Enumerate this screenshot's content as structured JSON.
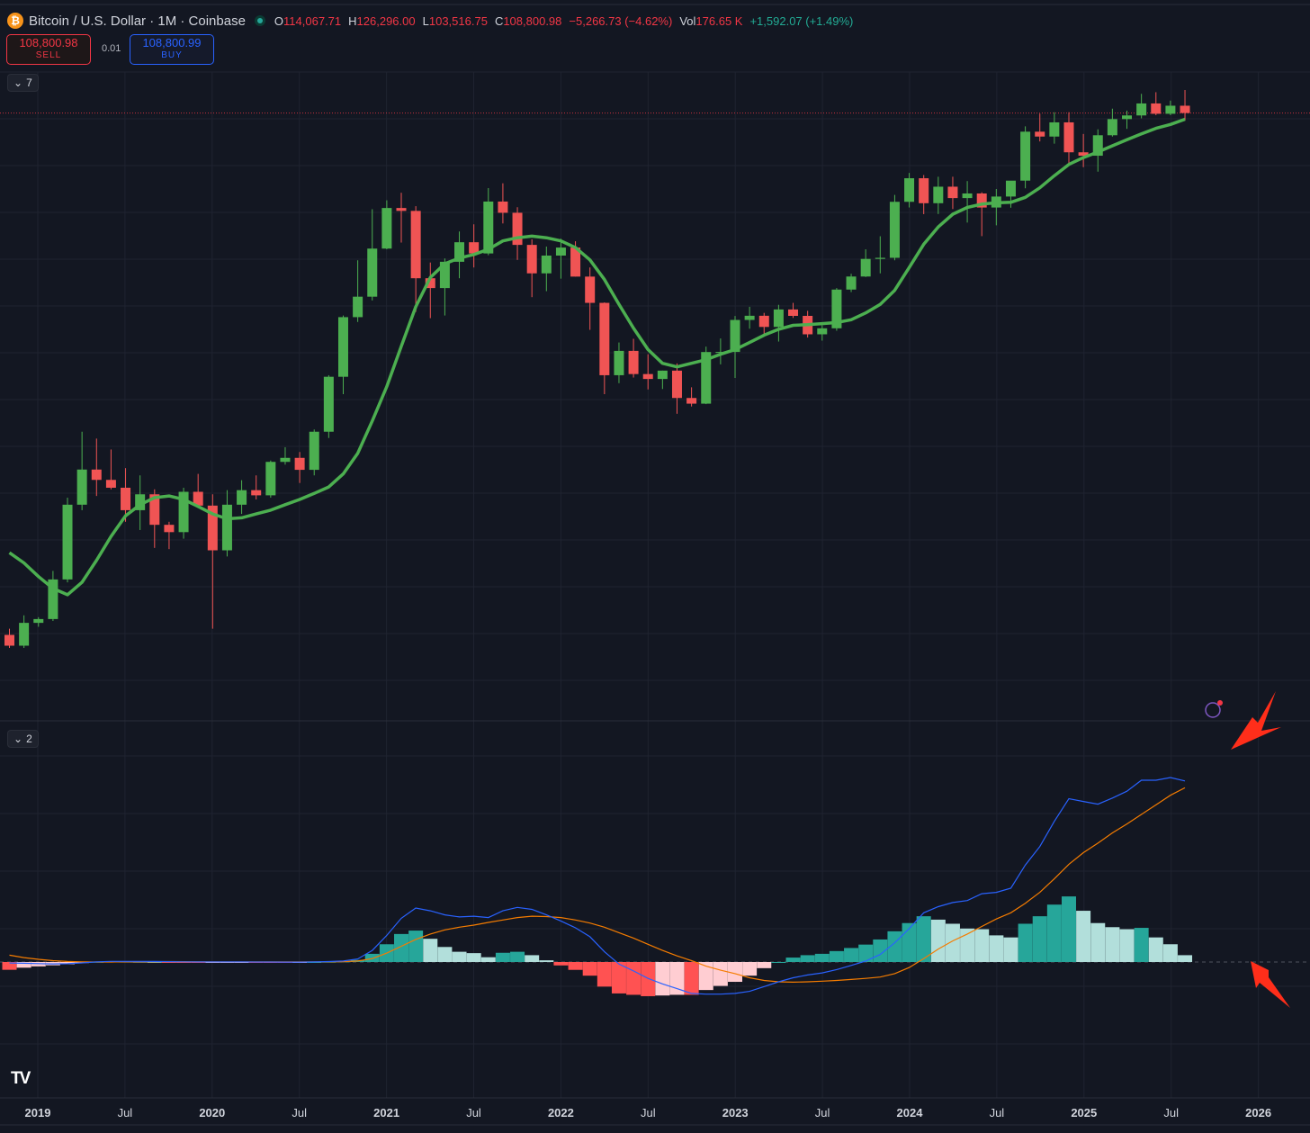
{
  "header": {
    "symbol": "Bitcoin / U.S. Dollar · 1M · Coinbase",
    "o_label": "O",
    "o_value": "114,067.71",
    "h_label": "H",
    "h_value": "126,296.00",
    "l_label": "L",
    "l_value": "103,516.75",
    "c_label": "C",
    "c_value": "108,800.98",
    "change": "−5,266.73 (−4.62%)",
    "vol_label": "Vol",
    "vol_value": "176.65 K",
    "vol_change": "+1,592.07 (+1.49%)"
  },
  "trade": {
    "sell_price": "108,800.98",
    "sell_label": "SELL",
    "spread": "0.01",
    "buy_price": "108,800.99",
    "buy_label": "BUY"
  },
  "panes": {
    "main_indicators_count": "7",
    "lower_indicators_count": "2"
  },
  "colors": {
    "up": "#4caf50",
    "down": "#f05454",
    "ma": "#4caf50",
    "macd": "#2962ff",
    "signal": "#f57c00",
    "hist_up_strong": "#26a69a",
    "hist_up_weak": "#b2dfdb",
    "hist_down_strong": "#ff5252",
    "hist_down_weak": "#ffcdd2",
    "annotation_arrow": "#ff2e1a"
  },
  "chart_data": {
    "type": "candlestick",
    "timeframe": "monthly",
    "start": "2019-01",
    "x_tick_labels": [
      "2019",
      "Jul",
      "2020",
      "Jul",
      "2021",
      "Jul",
      "2022",
      "Jul",
      "2023",
      "Jul",
      "2024",
      "Jul",
      "2025",
      "Jul",
      "2026"
    ],
    "y_scale": "log",
    "ohlc": [
      [
        3700,
        3850,
        3400,
        3450
      ],
      [
        3450,
        4200,
        3400,
        4000
      ],
      [
        4000,
        4150,
        3900,
        4100
      ],
      [
        4100,
        5600,
        4050,
        5300
      ],
      [
        5300,
        9000,
        5200,
        8600
      ],
      [
        8600,
        13800,
        8300,
        10800
      ],
      [
        10800,
        13200,
        9100,
        10100
      ],
      [
        10100,
        12300,
        9500,
        9600
      ],
      [
        9600,
        10900,
        7700,
        8300
      ],
      [
        8300,
        10400,
        7300,
        9200
      ],
      [
        9200,
        9500,
        6500,
        7550
      ],
      [
        7550,
        7700,
        6450,
        7200
      ],
      [
        7200,
        9600,
        6900,
        9350
      ],
      [
        9350,
        10500,
        8450,
        8550
      ],
      [
        8550,
        9200,
        3850,
        6400
      ],
      [
        6400,
        9450,
        6150,
        8600
      ],
      [
        8600,
        10080,
        8100,
        9450
      ],
      [
        9450,
        10400,
        8900,
        9140
      ],
      [
        9140,
        11450,
        9000,
        11350
      ],
      [
        11350,
        12480,
        11150,
        11650
      ],
      [
        11650,
        12100,
        9900,
        10780
      ],
      [
        10780,
        14000,
        10400,
        13800
      ],
      [
        13800,
        19900,
        13250,
        19700
      ],
      [
        19700,
        29300,
        17600,
        28990
      ],
      [
        28990,
        41900,
        28100,
        33100
      ],
      [
        33100,
        58350,
        32300,
        45200
      ],
      [
        45200,
        61800,
        45000,
        58800
      ],
      [
        58800,
        64900,
        47000,
        57700
      ],
      [
        57700,
        59500,
        30000,
        37300
      ],
      [
        37300,
        41300,
        28800,
        35000
      ],
      [
        35000,
        42400,
        29300,
        41500
      ],
      [
        41500,
        50500,
        37300,
        47100
      ],
      [
        47100,
        52900,
        40000,
        43800
      ],
      [
        43800,
        66900,
        43300,
        61300
      ],
      [
        61300,
        69000,
        53200,
        57000
      ],
      [
        57000,
        59100,
        42000,
        46300
      ],
      [
        46300,
        48000,
        33000,
        38500
      ],
      [
        38500,
        45800,
        34300,
        43200
      ],
      [
        43200,
        48200,
        37200,
        45500
      ],
      [
        45500,
        47400,
        37700,
        37700
      ],
      [
        37700,
        40000,
        26700,
        31800
      ],
      [
        31800,
        31900,
        17600,
        19900
      ],
      [
        19900,
        24600,
        18900,
        23300
      ],
      [
        23300,
        25200,
        19600,
        20050
      ],
      [
        20050,
        22800,
        18150,
        19420
      ],
      [
        19420,
        20500,
        18200,
        20500
      ],
      [
        20500,
        21480,
        15500,
        17170
      ],
      [
        17170,
        18400,
        16250,
        16550
      ],
      [
        16550,
        23950,
        16500,
        23125
      ],
      [
        23125,
        25250,
        21350,
        23140
      ],
      [
        23140,
        29200,
        19550,
        28470
      ],
      [
        28470,
        31000,
        26900,
        29250
      ],
      [
        29250,
        29800,
        25800,
        27210
      ],
      [
        27210,
        31400,
        24750,
        30470
      ],
      [
        30470,
        31800,
        28850,
        29230
      ],
      [
        29230,
        30200,
        25400,
        25940
      ],
      [
        25940,
        27500,
        24900,
        26970
      ],
      [
        26970,
        35000,
        26550,
        34660
      ],
      [
        34660,
        38400,
        34100,
        37720
      ],
      [
        37720,
        45000,
        37600,
        42280
      ],
      [
        42280,
        48960,
        38500,
        42580
      ],
      [
        42580,
        64000,
        41900,
        61200
      ],
      [
        61200,
        73800,
        59000,
        71300
      ],
      [
        71300,
        72800,
        56500,
        60650
      ],
      [
        60650,
        72000,
        56550,
        67500
      ],
      [
        67500,
        72000,
        58400,
        62700
      ],
      [
        62700,
        70000,
        53500,
        64600
      ],
      [
        64600,
        65100,
        49000,
        58980
      ],
      [
        58980,
        66500,
        52550,
        63330
      ],
      [
        63330,
        69500,
        58900,
        70200
      ],
      [
        70200,
        99800,
        66800,
        96400
      ],
      [
        96400,
        108350,
        90500,
        93400
      ],
      [
        93400,
        109350,
        89200,
        102400
      ],
      [
        102400,
        109350,
        78200,
        84350
      ],
      [
        84350,
        95000,
        76600,
        82500
      ],
      [
        82500,
        97900,
        74400,
        94200
      ],
      [
        94200,
        111900,
        93400,
        104600
      ],
      [
        104600,
        110500,
        98200,
        107100
      ],
      [
        107100,
        123200,
        105100,
        115750
      ],
      [
        115750,
        124500,
        107300,
        108250
      ],
      [
        108250,
        117900,
        107300,
        114067
      ],
      [
        114067,
        126296,
        103517,
        108800
      ]
    ],
    "ma_line": [
      6300,
      5900,
      5400,
      5000,
      4800,
      5200,
      6000,
      7000,
      8000,
      8600,
      9000,
      9100,
      8900,
      8500,
      8100,
      7850,
      7900,
      8100,
      8300,
      8600,
      8900,
      9250,
      9650,
      10500,
      12000,
      14800,
      18500,
      24000,
      31000,
      37500,
      41000,
      42500,
      43500,
      45000,
      47500,
      48500,
      49000,
      48500,
      47500,
      45500,
      42000,
      37000,
      31500,
      27000,
      23500,
      21500,
      21000,
      21500,
      22000,
      22800,
      23500,
      24600,
      25800,
      26800,
      27500,
      27600,
      27800,
      28000,
      28500,
      29800,
      31500,
      34500,
      40000,
      46500,
      52000,
      56500,
      59000,
      60300,
      60800,
      61000,
      63000,
      67000,
      72500,
      78000,
      81500,
      84500,
      88000,
      91500,
      95000,
      98500,
      101000,
      104500
    ]
  },
  "macd_data": {
    "type": "macd",
    "macd_line": [
      -140,
      -180,
      -240,
      -280,
      -250,
      -130,
      30,
      90,
      90,
      95,
      80,
      50,
      20,
      10,
      10,
      10,
      15,
      0,
      -5,
      -10,
      -10,
      10,
      60,
      140,
      450,
      1700,
      3900,
      6400,
      7900,
      7500,
      6900,
      6600,
      6700,
      6500,
      7500,
      8000,
      7700,
      6900,
      6000,
      5000,
      3700,
      1500,
      -300,
      -1300,
      -2400,
      -3200,
      -3900,
      -4600,
      -4700,
      -4700,
      -4600,
      -4300,
      -3600,
      -2900,
      -2300,
      -1900,
      -1600,
      -1100,
      -500,
      150,
      1100,
      2800,
      4900,
      7200,
      8100,
      8700,
      9000,
      10000,
      10200,
      10800,
      14200,
      16900,
      20600,
      23900,
      23500,
      23100,
      24000,
      25000,
      26600,
      26600,
      27000,
      26500
    ],
    "signal_line": [
      1000,
      650,
      400,
      200,
      80,
      20,
      0,
      5,
      20,
      40,
      55,
      60,
      50,
      45,
      35,
      30,
      25,
      25,
      20,
      15,
      10,
      10,
      20,
      50,
      150,
      500,
      1300,
      2300,
      3300,
      4100,
      4700,
      5100,
      5400,
      5800,
      6150,
      6500,
      6700,
      6650,
      6500,
      6150,
      5700,
      5100,
      4300,
      3500,
      2600,
      1700,
      900,
      200,
      -600,
      -1200,
      -1700,
      -2300,
      -2700,
      -2900,
      -2950,
      -2900,
      -2800,
      -2700,
      -2550,
      -2400,
      -2200,
      -1700,
      -800,
      500,
      1900,
      3100,
      4100,
      5200,
      6300,
      7200,
      8600,
      10200,
      12200,
      14300,
      16000,
      17400,
      18900,
      20200,
      21600,
      23000,
      24400,
      25500
    ],
    "histogram": [
      -1140,
      -830,
      -640,
      -480,
      -330,
      -150,
      30,
      85,
      70,
      55,
      25,
      -10,
      -30,
      -35,
      -25,
      -20,
      -10,
      -25,
      -25,
      -25,
      -20,
      0,
      40,
      90,
      300,
      1200,
      2600,
      4100,
      4600,
      3400,
      2200,
      1500,
      1300,
      700,
      1350,
      1500,
      1000,
      250,
      -500,
      -1150,
      -2000,
      -3600,
      -4600,
      -4800,
      -5000,
      -4900,
      -4800,
      -4800,
      -4100,
      -3500,
      -2900,
      -2000,
      -900,
      0,
      650,
      1000,
      1200,
      1600,
      2050,
      2550,
      3300,
      4500,
      5700,
      6700,
      6200,
      5600,
      4900,
      4800,
      3900,
      3600,
      5600,
      6700,
      8400,
      9600,
      7500,
      5700,
      5100,
      4800,
      5000,
      3600,
      2600,
      1000
    ]
  }
}
